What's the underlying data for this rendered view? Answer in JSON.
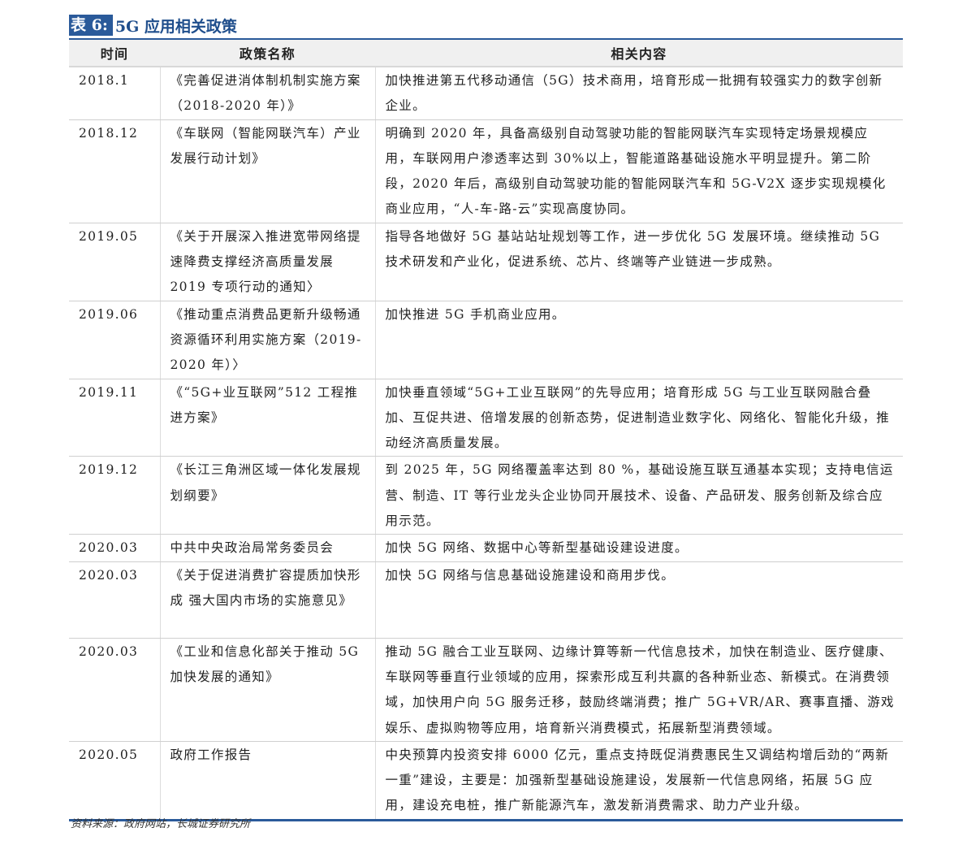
{
  "title": {
    "label": "表 6:",
    "text": "5G 应用相关政策"
  },
  "columns": [
    "时间",
    "政策名称",
    "相关内容"
  ],
  "rows": [
    {
      "time": "2018.1",
      "name": "《完善促进消体制机制实施方案 （2018-2020 年）》",
      "content": "加快推进第五代移动通信（5G）技术商用，培育形成一批拥有较强实力的数字创新企业。"
    },
    {
      "time": "2018.12",
      "name": "《车联网（智能网联汽车）产业发展行动计划》",
      "content": "明确到 2020 年，具备高级别自动驾驶功能的智能网联汽车实现特定场景规模应用，车联网用户渗透率达到 30%以上，智能道路基础设施水平明显提升。第二阶段，2020 年后，高级别自动驾驶功能的智能网联汽车和 5G-V2X 逐步实现规模化商业应用，“人-车-路-云”实现高度协同。"
    },
    {
      "time": "2019.05",
      "name": "《关于开展深入推进宽带网络提速降费支撑经济高质量发展 2019 专项行动的通知〉",
      "content": "指导各地做好 5G 基站站址规划等工作，进一步优化 5G 发展环境。继续推动 5G 技术研发和产业化，促进系统、芯片、终端等产业链进一步成熟。"
    },
    {
      "time": "2019.06",
      "name": "《推动重点消费品更新升级畅通资源循环利用实施方案（2019-2020 年）〉",
      "content": "加快推进 5G 手机商业应用。"
    },
    {
      "time": "2019.11",
      "name": "《“5G+业互联网”512 工程推进方案》",
      "content": "加快垂直领域“5G+工业互联网”的先导应用；培育形成 5G 与工业互联网融合叠加、互促共进、倍增发展的创新态势，促进制造业数字化、网络化、智能化升级，推动经济高质量发展。"
    },
    {
      "time": "2019.12",
      "name": "《长江三角洲区域一体化发展规划纲要》",
      "content": "到 2025 年，5G 网络覆盖率达到 80 %，基础设施互联互通基本实现；支持电信运营、制造、IT 等行业龙头企业协同开展技术、设备、产品研发、服务创新及综合应用示范。"
    },
    {
      "time": "2020.03",
      "name": "中共中央政治局常务委员会",
      "content": "加快 5G 网络、数据中心等新型基础设建设进度。"
    },
    {
      "time": "2020.03",
      "name": "《关于促进消费扩容提质加快形成 强大国内市场的实施意见》",
      "content": "加快 5G 网络与信息基础设施建设和商用步伐。"
    },
    {
      "time": "2020.03",
      "name": "《工业和信息化部关于推动 5G 加快发展的通知》",
      "content": "推动 5G 融合工业互联网、边缘计算等新一代信息技术，加快在制造业、医疗健康、车联网等垂直行业领域的应用，探索形成互利共赢的各种新业态、新模式。在消费领域，加快用户向 5G 服务迁移，鼓励终端消费；推广 5G+VR/AR、赛事直播、游戏娱乐、虚拟购物等应用，培育新兴消费模式，拓展新型消费领域。"
    },
    {
      "time": "2020.05",
      "name": "政府工作报告",
      "content": "中央预算内投资安排 6000 亿元，重点支持既促消费惠民生又调结构增后劲的“两新一重”建设，主要是：加强新型基础设施建设，发展新一代信息网络，拓展 5G 应用，建设充电桩，推广新能源汽车，激发新消费需求、助力产业升级。"
    }
  ],
  "source": "资料来源：政府网站，长城证券研究所",
  "colors": {
    "accent": "#2a5a9a",
    "header_bg": "#f0f0f0"
  }
}
